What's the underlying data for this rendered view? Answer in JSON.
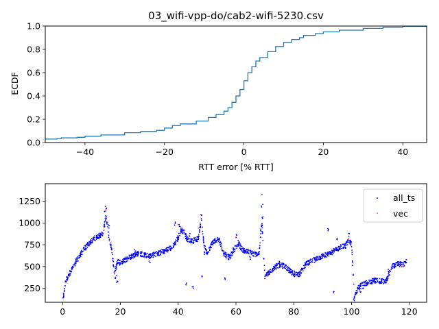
{
  "chart_data": [
    {
      "type": "line",
      "title": "03_wifi-vpp-do/cab2-wifi-5230.csv",
      "xlabel": "RTT error [% RTT]",
      "ylabel": "ECDF",
      "xlim": [
        -50,
        46
      ],
      "ylim": [
        0.0,
        1.0
      ],
      "xticks": [
        -40,
        -20,
        0,
        20,
        40
      ],
      "yticks": [
        0.0,
        0.2,
        0.4,
        0.6,
        0.8,
        1.0
      ],
      "xtick_labels": [
        "−40",
        "−20",
        "0",
        "20",
        "40"
      ],
      "ytick_labels": [
        "0.0",
        "0.2",
        "0.4",
        "0.6",
        "0.8",
        "1.0"
      ],
      "grid": false,
      "color": "#1f77b4",
      "series": [
        {
          "x": [
            -50,
            -47,
            -46,
            -42,
            -40,
            -36,
            -30,
            -26,
            -22,
            -20,
            -18,
            -16,
            -12,
            -9,
            -7,
            -5,
            -4,
            -3,
            -2,
            -1,
            0,
            1,
            2,
            3,
            4,
            6,
            8,
            10,
            12,
            14,
            15,
            18,
            20,
            24,
            30,
            35,
            40,
            46
          ],
          "y": [
            0.03,
            0.035,
            0.04,
            0.045,
            0.055,
            0.065,
            0.085,
            0.095,
            0.105,
            0.125,
            0.145,
            0.16,
            0.185,
            0.215,
            0.24,
            0.27,
            0.3,
            0.345,
            0.4,
            0.455,
            0.53,
            0.6,
            0.65,
            0.7,
            0.73,
            0.78,
            0.825,
            0.86,
            0.885,
            0.9,
            0.92,
            0.935,
            0.95,
            0.965,
            0.98,
            0.99,
            0.997,
            1.0
          ]
        }
      ]
    },
    {
      "type": "scatter",
      "title": "",
      "xlabel": "",
      "ylabel": "",
      "xlim": [
        -6,
        126
      ],
      "ylim": [
        90,
        1450
      ],
      "xticks": [
        0,
        20,
        40,
        60,
        80,
        100,
        120
      ],
      "yticks": [
        250,
        500,
        750,
        1000,
        1250
      ],
      "xtick_labels": [
        "0",
        "20",
        "40",
        "60",
        "80",
        "100",
        "120"
      ],
      "ytick_labels": [
        "250",
        "500",
        "750",
        "1000",
        "1250"
      ],
      "grid": false,
      "legend_position": "top-right",
      "series": [
        {
          "name": "all_ts",
          "color": "#0000ff",
          "trend": [
            [
              0,
              100
            ],
            [
              0.5,
              200
            ],
            [
              1,
              320
            ],
            [
              2,
              400
            ],
            [
              3,
              450
            ],
            [
              4,
              520
            ],
            [
              5,
              580
            ],
            [
              6,
              620
            ],
            [
              7,
              680
            ],
            [
              8,
              720
            ],
            [
              9,
              760
            ],
            [
              10,
              790
            ],
            [
              11,
              820
            ],
            [
              12,
              840
            ],
            [
              13,
              860
            ],
            [
              14,
              880
            ],
            [
              15,
              1080
            ],
            [
              16,
              850
            ],
            [
              17,
              700
            ],
            [
              18,
              420
            ],
            [
              19,
              560
            ],
            [
              20,
              540
            ],
            [
              22,
              580
            ],
            [
              24,
              620
            ],
            [
              26,
              650
            ],
            [
              28,
              640
            ],
            [
              30,
              620
            ],
            [
              32,
              640
            ],
            [
              34,
              660
            ],
            [
              36,
              690
            ],
            [
              38,
              720
            ],
            [
              40,
              830
            ],
            [
              41,
              920
            ],
            [
              42,
              900
            ],
            [
              43,
              820
            ],
            [
              45,
              790
            ],
            [
              47,
              820
            ],
            [
              48,
              1060
            ],
            [
              49,
              740
            ],
            [
              50,
              650
            ],
            [
              52,
              780
            ],
            [
              54,
              820
            ],
            [
              56,
              640
            ],
            [
              58,
              600
            ],
            [
              59,
              690
            ],
            [
              60,
              720
            ],
            [
              61,
              760
            ],
            [
              62,
              700
            ],
            [
              63,
              680
            ],
            [
              65,
              660
            ],
            [
              67,
              640
            ],
            [
              68,
              650
            ],
            [
              69,
              1000
            ],
            [
              70,
              380
            ],
            [
              71,
              420
            ],
            [
              73,
              480
            ],
            [
              75,
              520
            ],
            [
              77,
              500
            ],
            [
              79,
              440
            ],
            [
              80,
              420
            ],
            [
              82,
              410
            ],
            [
              84,
              520
            ],
            [
              86,
              560
            ],
            [
              88,
              590
            ],
            [
              90,
              620
            ],
            [
              92,
              640
            ],
            [
              94,
              680
            ],
            [
              96,
              720
            ],
            [
              98,
              740
            ],
            [
              99,
              800
            ],
            [
              100,
              760
            ],
            [
              101,
              160
            ],
            [
              102,
              240
            ],
            [
              104,
              300
            ],
            [
              106,
              320
            ],
            [
              108,
              340
            ],
            [
              110,
              330
            ],
            [
              112,
              330
            ],
            [
              114,
              500
            ],
            [
              116,
              530
            ],
            [
              118,
              520
            ],
            [
              119,
              560
            ]
          ],
          "outliers": [
            [
              15,
              1180
            ],
            [
              14.5,
              1140
            ],
            [
              16,
              960
            ],
            [
              18.5,
              380
            ],
            [
              19,
              320
            ],
            [
              39,
              990
            ],
            [
              40.5,
              970
            ],
            [
              44,
              860
            ],
            [
              44.5,
              800
            ],
            [
              48,
              1100
            ],
            [
              47.5,
              960
            ],
            [
              49,
              650
            ],
            [
              60,
              850
            ],
            [
              61,
              780
            ],
            [
              69,
              1200
            ],
            [
              69.2,
              1050
            ],
            [
              68.8,
              920
            ],
            [
              43,
              300
            ],
            [
              45,
              270
            ],
            [
              48,
              380
            ],
            [
              56,
              350
            ],
            [
              92,
              930
            ],
            [
              95,
              820
            ],
            [
              94,
              200
            ],
            [
              99,
              860
            ],
            [
              101,
              120
            ],
            [
              103,
              200
            ],
            [
              113,
              460
            ],
            [
              104,
              260
            ],
            [
              80,
              380
            ],
            [
              75,
              550
            ],
            [
              65,
              600
            ],
            [
              30,
              560
            ],
            [
              25,
              680
            ]
          ]
        },
        {
          "name": "vec",
          "color": "#ff0000",
          "points": [
            [
              69,
              1330
            ],
            [
              47,
              940
            ],
            [
              15,
              1150
            ],
            [
              40,
              980
            ],
            [
              92,
              920
            ],
            [
              99,
              820
            ],
            [
              118,
              500
            ],
            [
              60,
              830
            ],
            [
              10,
              800
            ]
          ]
        }
      ]
    }
  ]
}
